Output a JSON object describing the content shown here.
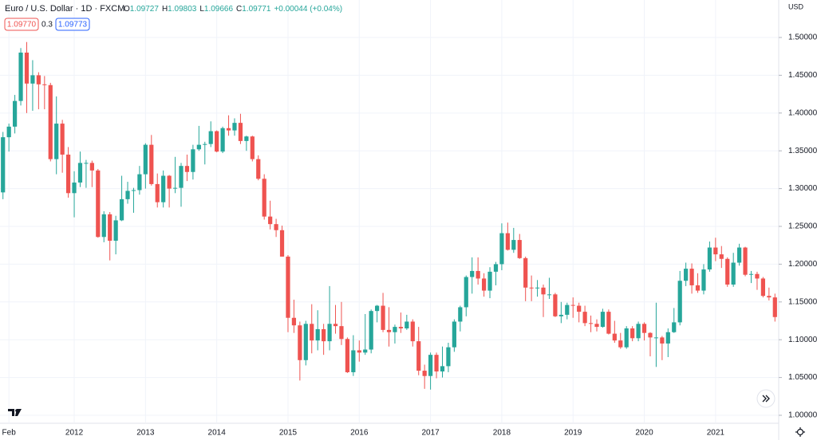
{
  "chart_data": {
    "type": "candlestick",
    "title": "Euro / U.S. Dollar · 1D · FXCM",
    "ohlc_header": [
      {
        "label": "O",
        "value": "1.09727"
      },
      {
        "label": "H",
        "value": "1.09803"
      },
      {
        "label": "L",
        "value": "1.09666"
      },
      {
        "label": "C",
        "value": "1.09771"
      }
    ],
    "change": "+0.00044 (+0.04%)",
    "price_boxes": [
      "1.09770",
      "0.3",
      "1.09773"
    ],
    "currency": "USD",
    "up_color": "#26a69a",
    "down_color": "#ef5350",
    "grid": true,
    "categories": [
      null,
      "Feb",
      null,
      null,
      null,
      null,
      null,
      null,
      null,
      null,
      null,
      null,
      "2012",
      null,
      null,
      null,
      null,
      null,
      null,
      null,
      null,
      null,
      null,
      null,
      "2013",
      null,
      null,
      null,
      null,
      null,
      null,
      null,
      null,
      null,
      null,
      null,
      "2014",
      null,
      null,
      null,
      null,
      null,
      null,
      null,
      null,
      null,
      null,
      null,
      "2015",
      null,
      null,
      null,
      null,
      null,
      null,
      null,
      null,
      null,
      null,
      null,
      "2016",
      null,
      null,
      null,
      null,
      null,
      null,
      null,
      null,
      null,
      null,
      null,
      "2017",
      null,
      null,
      null,
      null,
      null,
      null,
      null,
      null,
      null,
      null,
      null,
      "2018",
      null,
      null,
      null,
      null,
      null,
      null,
      null,
      null,
      null,
      null,
      null,
      "2019",
      null,
      null,
      null,
      null,
      null,
      null,
      null,
      null,
      null,
      null,
      null,
      "2020",
      null,
      null,
      null,
      null,
      null,
      null,
      null,
      null,
      null,
      null,
      null,
      "2021",
      null,
      null,
      null,
      null,
      null,
      null,
      null,
      null,
      null,
      null
    ],
    "open": [
      1.295,
      1.368,
      1.382,
      1.416,
      1.48,
      1.439,
      1.45,
      1.438,
      1.437,
      1.339,
      1.386,
      1.345,
      1.294,
      1.308,
      1.334,
      1.334,
      1.324,
      1.236,
      1.266,
      1.231,
      1.258,
      1.286,
      1.297,
      1.298,
      1.319,
      1.358,
      1.306,
      1.282,
      1.317,
      1.3,
      1.301,
      1.33,
      1.322,
      1.352,
      1.358,
      1.359,
      1.376,
      1.349,
      1.38,
      1.377,
      1.387,
      1.363,
      1.369,
      1.339,
      1.313,
      1.263,
      1.253,
      1.245,
      1.21,
      1.129,
      1.119,
      1.073,
      1.121,
      1.099,
      1.114,
      1.098,
      1.121,
      1.118,
      1.101,
      1.057,
      1.086,
      1.083,
      1.087,
      1.138,
      1.145,
      1.113,
      1.11,
      1.117,
      1.115,
      1.124,
      1.098,
      1.059,
      1.052,
      1.08,
      1.058,
      1.065,
      1.09,
      1.124,
      1.143,
      1.183,
      1.191,
      1.181,
      1.165,
      1.19,
      1.2,
      1.241,
      1.219,
      1.232,
      1.208,
      1.169,
      1.168,
      1.169,
      1.16,
      1.16,
      1.131,
      1.133,
      1.146,
      1.145,
      1.137,
      1.122,
      1.121,
      1.117,
      1.137,
      1.108,
      1.099,
      1.09,
      1.115,
      1.102,
      1.121,
      1.109,
      1.103,
      1.103,
      1.095,
      1.11,
      1.123,
      1.178,
      1.194,
      1.172,
      1.165,
      1.193,
      1.222,
      1.213,
      1.207,
      1.173,
      1.202,
      1.222,
      1.186,
      1.187,
      1.181,
      1.158,
      1.156
    ],
    "high": [
      1.375,
      1.386,
      1.424,
      1.486,
      1.494,
      1.47,
      1.454,
      1.449,
      1.44,
      1.422,
      1.391,
      1.355,
      1.323,
      1.349,
      1.338,
      1.337,
      1.326,
      1.27,
      1.269,
      1.264,
      1.317,
      1.309,
      1.301,
      1.33,
      1.36,
      1.371,
      1.32,
      1.324,
      1.318,
      1.342,
      1.334,
      1.345,
      1.358,
      1.383,
      1.362,
      1.389,
      1.377,
      1.382,
      1.397,
      1.393,
      1.399,
      1.37,
      1.37,
      1.344,
      1.319,
      1.284,
      1.26,
      1.251,
      1.212,
      1.153,
      1.124,
      1.125,
      1.147,
      1.139,
      1.121,
      1.171,
      1.146,
      1.15,
      1.103,
      1.106,
      1.099,
      1.134,
      1.14,
      1.146,
      1.162,
      1.143,
      1.12,
      1.136,
      1.133,
      1.127,
      1.117,
      1.067,
      1.083,
      1.083,
      1.091,
      1.096,
      1.127,
      1.145,
      1.185,
      1.209,
      1.209,
      1.188,
      1.196,
      1.203,
      1.254,
      1.255,
      1.248,
      1.24,
      1.21,
      1.185,
      1.179,
      1.173,
      1.182,
      1.162,
      1.15,
      1.149,
      1.156,
      1.149,
      1.145,
      1.132,
      1.127,
      1.141,
      1.14,
      1.125,
      1.109,
      1.118,
      1.118,
      1.124,
      1.123,
      1.11,
      1.149,
      1.105,
      1.115,
      1.142,
      1.191,
      1.202,
      1.201,
      1.188,
      1.2,
      1.23,
      1.235,
      1.224,
      1.209,
      1.215,
      1.227,
      1.223,
      1.191,
      1.19,
      1.183,
      1.169,
      1.161
    ],
    "low": [
      1.286,
      1.349,
      1.373,
      1.41,
      1.4,
      1.403,
      1.405,
      1.405,
      1.336,
      1.319,
      1.321,
      1.288,
      1.262,
      1.302,
      1.301,
      1.302,
      1.235,
      1.229,
      1.205,
      1.213,
      1.257,
      1.28,
      1.268,
      1.292,
      1.3,
      1.304,
      1.275,
      1.275,
      1.275,
      1.294,
      1.276,
      1.31,
      1.312,
      1.35,
      1.332,
      1.355,
      1.348,
      1.347,
      1.37,
      1.37,
      1.359,
      1.35,
      1.336,
      1.311,
      1.259,
      1.246,
      1.236,
      1.21,
      1.11,
      1.109,
      1.046,
      1.066,
      1.082,
      1.086,
      1.08,
      1.086,
      1.108,
      1.093,
      1.056,
      1.052,
      1.071,
      1.08,
      1.082,
      1.123,
      1.11,
      1.091,
      1.095,
      1.109,
      1.113,
      1.091,
      1.053,
      1.035,
      1.034,
      1.049,
      1.05,
      1.057,
      1.084,
      1.111,
      1.131,
      1.161,
      1.173,
      1.157,
      1.155,
      1.172,
      1.192,
      1.218,
      1.215,
      1.207,
      1.151,
      1.151,
      1.157,
      1.13,
      1.154,
      1.13,
      1.122,
      1.127,
      1.129,
      1.123,
      1.118,
      1.11,
      1.111,
      1.116,
      1.107,
      1.096,
      1.088,
      1.088,
      1.098,
      1.098,
      1.099,
      1.078,
      1.064,
      1.073,
      1.077,
      1.109,
      1.119,
      1.171,
      1.161,
      1.162,
      1.16,
      1.19,
      1.204,
      1.195,
      1.17,
      1.17,
      1.198,
      1.184,
      1.175,
      1.166,
      1.156,
      1.152,
      1.124
    ],
    "close": [
      1.368,
      1.382,
      1.416,
      1.48,
      1.439,
      1.45,
      1.438,
      1.437,
      1.339,
      1.386,
      1.345,
      1.294,
      1.308,
      1.334,
      1.334,
      1.324,
      1.236,
      1.266,
      1.231,
      1.258,
      1.286,
      1.297,
      1.298,
      1.319,
      1.358,
      1.306,
      1.282,
      1.317,
      1.3,
      1.301,
      1.33,
      1.322,
      1.352,
      1.358,
      1.359,
      1.376,
      1.349,
      1.38,
      1.377,
      1.387,
      1.363,
      1.369,
      1.339,
      1.313,
      1.263,
      1.253,
      1.245,
      1.21,
      1.129,
      1.119,
      1.073,
      1.121,
      1.099,
      1.114,
      1.098,
      1.121,
      1.118,
      1.101,
      1.057,
      1.086,
      1.083,
      1.087,
      1.138,
      1.145,
      1.113,
      1.11,
      1.117,
      1.115,
      1.124,
      1.098,
      1.059,
      1.052,
      1.08,
      1.058,
      1.065,
      1.09,
      1.124,
      1.143,
      1.183,
      1.191,
      1.181,
      1.165,
      1.19,
      1.2,
      1.241,
      1.219,
      1.232,
      1.208,
      1.169,
      1.168,
      1.169,
      1.16,
      1.16,
      1.131,
      1.133,
      1.146,
      1.145,
      1.137,
      1.122,
      1.121,
      1.117,
      1.137,
      1.108,
      1.099,
      1.09,
      1.115,
      1.102,
      1.121,
      1.109,
      1.103,
      1.103,
      1.095,
      1.11,
      1.123,
      1.178,
      1.194,
      1.172,
      1.165,
      1.193,
      1.222,
      1.213,
      1.207,
      1.173,
      1.202,
      1.222,
      1.186,
      1.187,
      1.181,
      1.158,
      1.156,
      1.13
    ],
    "ylim": [
      0.9905,
      1.5496
    ],
    "yticks": [
      {
        "value": 1.0,
        "label": "1.00000"
      },
      {
        "value": 1.05,
        "label": "1.05000"
      },
      {
        "value": 1.1,
        "label": "1.10000"
      },
      {
        "value": 1.15,
        "label": "1.15000"
      },
      {
        "value": 1.2,
        "label": "1.20000"
      },
      {
        "value": 1.25,
        "label": "1.25000"
      },
      {
        "value": 1.3,
        "label": "1.30000"
      },
      {
        "value": 1.35,
        "label": "1.35000"
      },
      {
        "value": 1.4,
        "label": "1.40000"
      },
      {
        "value": 1.45,
        "label": "1.45000"
      },
      {
        "value": 1.5,
        "label": "1.50000"
      }
    ]
  }
}
